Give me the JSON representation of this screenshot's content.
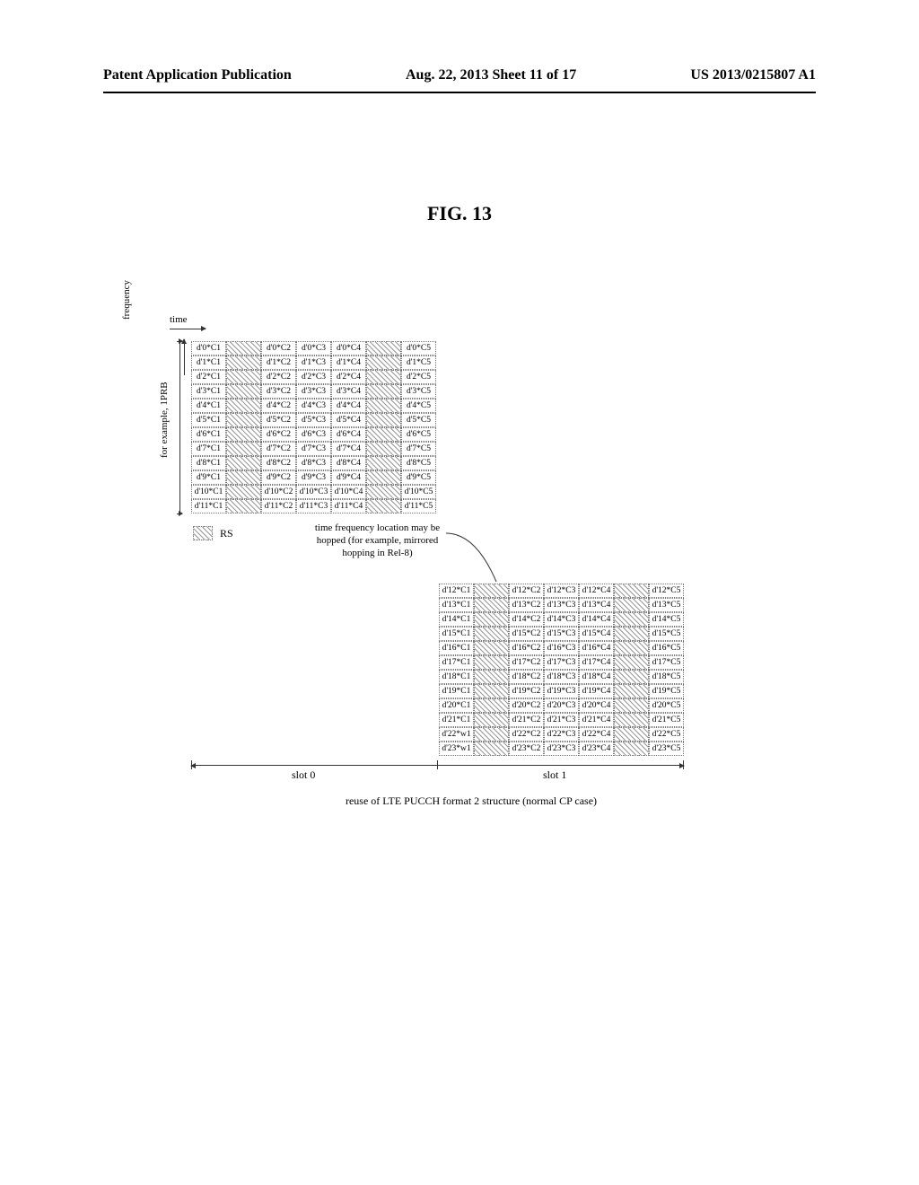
{
  "header": {
    "left": "Patent Application Publication",
    "center": "Aug. 22, 2013  Sheet 11 of 17",
    "right": "US 2013/0215807 A1"
  },
  "figure_title": "FIG. 13",
  "axes": {
    "time": "time",
    "frequency": "frequency",
    "prb": "for example, 1PRB"
  },
  "legend": {
    "rs": "RS"
  },
  "hop_note": "time frequency location may be hopped (for example, mirrored hopping in Rel-8)",
  "slots": {
    "slot0": "slot 0",
    "slot1": "slot 1"
  },
  "caption": "reuse of LTE PUCCH format 2 structure (normal CP case)",
  "slot_grid": {
    "rows": 12,
    "columns": 7,
    "rs_columns": [
      1,
      5
    ]
  },
  "slot0_base": 0,
  "slot1_base": 12,
  "slot0_col_labels": [
    "C1",
    "",
    "C2",
    "C3",
    "C4",
    "",
    "C5"
  ],
  "slot1_col_labels": [
    "C1",
    "",
    "C2",
    "C3",
    "C4",
    "",
    "C5"
  ],
  "slot1_overrides": {
    "10-0": "d'22*w1",
    "11-0": "d'23*w1"
  }
}
